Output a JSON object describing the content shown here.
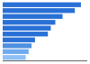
{
  "chart_data": {
    "type": "bar",
    "orientation": "horizontal",
    "values": [
      81365,
      75024,
      62271,
      54740,
      50000,
      47000,
      33607,
      30000,
      27000,
      24000
    ],
    "colors": [
      "#2970d6",
      "#2970d6",
      "#2970d6",
      "#2970d6",
      "#2970d6",
      "#2970d6",
      "#2970d6",
      "#5090e0",
      "#70aaee",
      "#90c0f5"
    ],
    "xlim": [
      0,
      88000
    ],
    "grid": false,
    "tick_labels": false
  }
}
